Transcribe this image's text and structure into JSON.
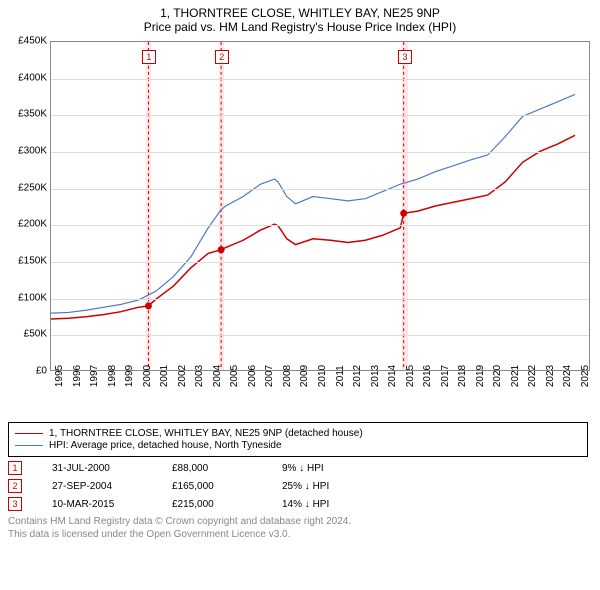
{
  "header": {
    "title": "1, THORNTREE CLOSE, WHITLEY BAY, NE25 9NP",
    "subtitle": "Price paid vs. HM Land Registry's House Price Index (HPI)"
  },
  "chart": {
    "type": "line",
    "background_color": "#ffffff",
    "grid_color": "#dddddd",
    "border_color": "#888888",
    "xlim": [
      1995,
      2025.8
    ],
    "ylim": [
      0,
      450000
    ],
    "ytick_step": 50000,
    "ytick_labels": [
      "£0",
      "£50K",
      "£100K",
      "£150K",
      "£200K",
      "£250K",
      "£300K",
      "£350K",
      "£400K",
      "£450K"
    ],
    "xtick_step": 1,
    "xtick_labels": [
      "1995",
      "1996",
      "1997",
      "1998",
      "1999",
      "2000",
      "2001",
      "2002",
      "2003",
      "2004",
      "2005",
      "2006",
      "2007",
      "2008",
      "2009",
      "2010",
      "2011",
      "2012",
      "2013",
      "2014",
      "2015",
      "2016",
      "2017",
      "2018",
      "2019",
      "2020",
      "2021",
      "2022",
      "2023",
      "2024",
      "2025"
    ],
    "series": [
      {
        "name": "property",
        "label": "1, THORNTREE CLOSE, WHITLEY BAY, NE25 9NP (detached house)",
        "color": "#cc0000",
        "line_width": 1.5,
        "points": [
          [
            1995,
            70000
          ],
          [
            1996,
            71000
          ],
          [
            1997,
            73000
          ],
          [
            1998,
            76000
          ],
          [
            1999,
            80000
          ],
          [
            2000,
            86000
          ],
          [
            2000.58,
            88000
          ],
          [
            2001,
            97000
          ],
          [
            2002,
            115000
          ],
          [
            2003,
            140000
          ],
          [
            2004,
            160000
          ],
          [
            2004.74,
            165000
          ],
          [
            2005,
            168000
          ],
          [
            2006,
            178000
          ],
          [
            2007,
            192000
          ],
          [
            2007.8,
            200000
          ],
          [
            2008,
            198000
          ],
          [
            2008.5,
            180000
          ],
          [
            2009,
            172000
          ],
          [
            2010,
            180000
          ],
          [
            2011,
            178000
          ],
          [
            2012,
            175000
          ],
          [
            2013,
            178000
          ],
          [
            2014,
            185000
          ],
          [
            2015,
            195000
          ],
          [
            2015.19,
            215000
          ],
          [
            2016,
            218000
          ],
          [
            2017,
            225000
          ],
          [
            2018,
            230000
          ],
          [
            2019,
            235000
          ],
          [
            2020,
            240000
          ],
          [
            2021,
            258000
          ],
          [
            2022,
            285000
          ],
          [
            2023,
            300000
          ],
          [
            2024,
            310000
          ],
          [
            2025,
            322000
          ]
        ],
        "markers": [
          {
            "x": 2000.58,
            "y": 88000
          },
          {
            "x": 2004.74,
            "y": 165000
          },
          {
            "x": 2015.19,
            "y": 215000
          }
        ]
      },
      {
        "name": "hpi",
        "label": "HPI: Average price, detached house, North Tyneside",
        "color": "#4a7bc4",
        "line_width": 1.2,
        "points": [
          [
            1995,
            78000
          ],
          [
            1996,
            79000
          ],
          [
            1997,
            82000
          ],
          [
            1998,
            86000
          ],
          [
            1999,
            90000
          ],
          [
            2000,
            96000
          ],
          [
            2001,
            108000
          ],
          [
            2002,
            128000
          ],
          [
            2003,
            155000
          ],
          [
            2004,
            195000
          ],
          [
            2004.74,
            220000
          ],
          [
            2005,
            225000
          ],
          [
            2006,
            238000
          ],
          [
            2007,
            255000
          ],
          [
            2007.8,
            262000
          ],
          [
            2008,
            258000
          ],
          [
            2008.5,
            238000
          ],
          [
            2009,
            228000
          ],
          [
            2010,
            238000
          ],
          [
            2011,
            235000
          ],
          [
            2012,
            232000
          ],
          [
            2013,
            235000
          ],
          [
            2014,
            245000
          ],
          [
            2015,
            255000
          ],
          [
            2016,
            262000
          ],
          [
            2017,
            272000
          ],
          [
            2018,
            280000
          ],
          [
            2019,
            288000
          ],
          [
            2020,
            295000
          ],
          [
            2021,
            320000
          ],
          [
            2022,
            348000
          ],
          [
            2023,
            358000
          ],
          [
            2024,
            368000
          ],
          [
            2025,
            378000
          ]
        ]
      }
    ],
    "transaction_bands": [
      {
        "x": 2000.58,
        "label": "1",
        "band_color": "#ffe5e5",
        "line_color": "#cc0000"
      },
      {
        "x": 2004.74,
        "label": "2",
        "band_color": "#ffe5e5",
        "line_color": "#cc0000"
      },
      {
        "x": 2015.19,
        "label": "3",
        "band_color": "#ffe5e5",
        "line_color": "#cc0000"
      }
    ],
    "band_half_width_years": 0.15
  },
  "legend": {
    "items": [
      {
        "color": "#cc0000",
        "width": 1.5,
        "label": "1, THORNTREE CLOSE, WHITLEY BAY, NE25 9NP (detached house)"
      },
      {
        "color": "#4a7bc4",
        "width": 1.2,
        "label": "HPI: Average price, detached house, North Tyneside"
      }
    ]
  },
  "transactions": [
    {
      "num": "1",
      "date": "31-JUL-2000",
      "price": "£88,000",
      "diff": "9% ↓ HPI"
    },
    {
      "num": "2",
      "date": "27-SEP-2004",
      "price": "£165,000",
      "diff": "25% ↓ HPI"
    },
    {
      "num": "3",
      "date": "10-MAR-2015",
      "price": "£215,000",
      "diff": "14% ↓ HPI"
    }
  ],
  "footer": {
    "line1": "Contains HM Land Registry data © Crown copyright and database right 2024.",
    "line2": "This data is licensed under the Open Government Licence v3.0."
  }
}
